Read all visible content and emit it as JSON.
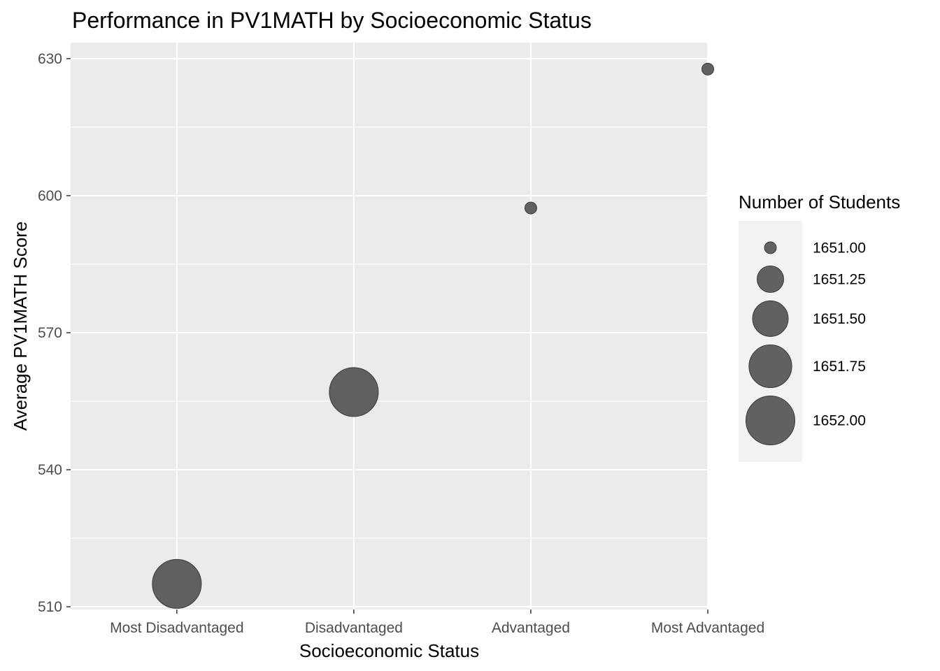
{
  "chart_data": {
    "type": "scatter",
    "title": "Performance in PV1MATH by Socioeconomic Status",
    "xlabel": "Socioeconomic Status",
    "ylabel": "Average PV1MATH Score",
    "categories": [
      "Most Disadvantaged",
      "Disadvantaged",
      "Advantaged",
      "Most Advantaged"
    ],
    "y": [
      515,
      557,
      597.3,
      627.7
    ],
    "size": [
      1652,
      1652,
      1651,
      1651
    ],
    "ylim": [
      509.4,
      633.5
    ],
    "yticks": [
      510,
      540,
      570,
      600,
      630
    ],
    "grid": true,
    "point_color": "#595959",
    "panel_color": "#ebebeb",
    "legend": {
      "title": "Number of Students",
      "placement": "right",
      "values": [
        1651.0,
        1651.25,
        1651.5,
        1651.75,
        1652.0
      ],
      "labels": [
        "1651.00",
        "1651.25",
        "1651.50",
        "1651.75",
        "1652.00"
      ]
    }
  }
}
